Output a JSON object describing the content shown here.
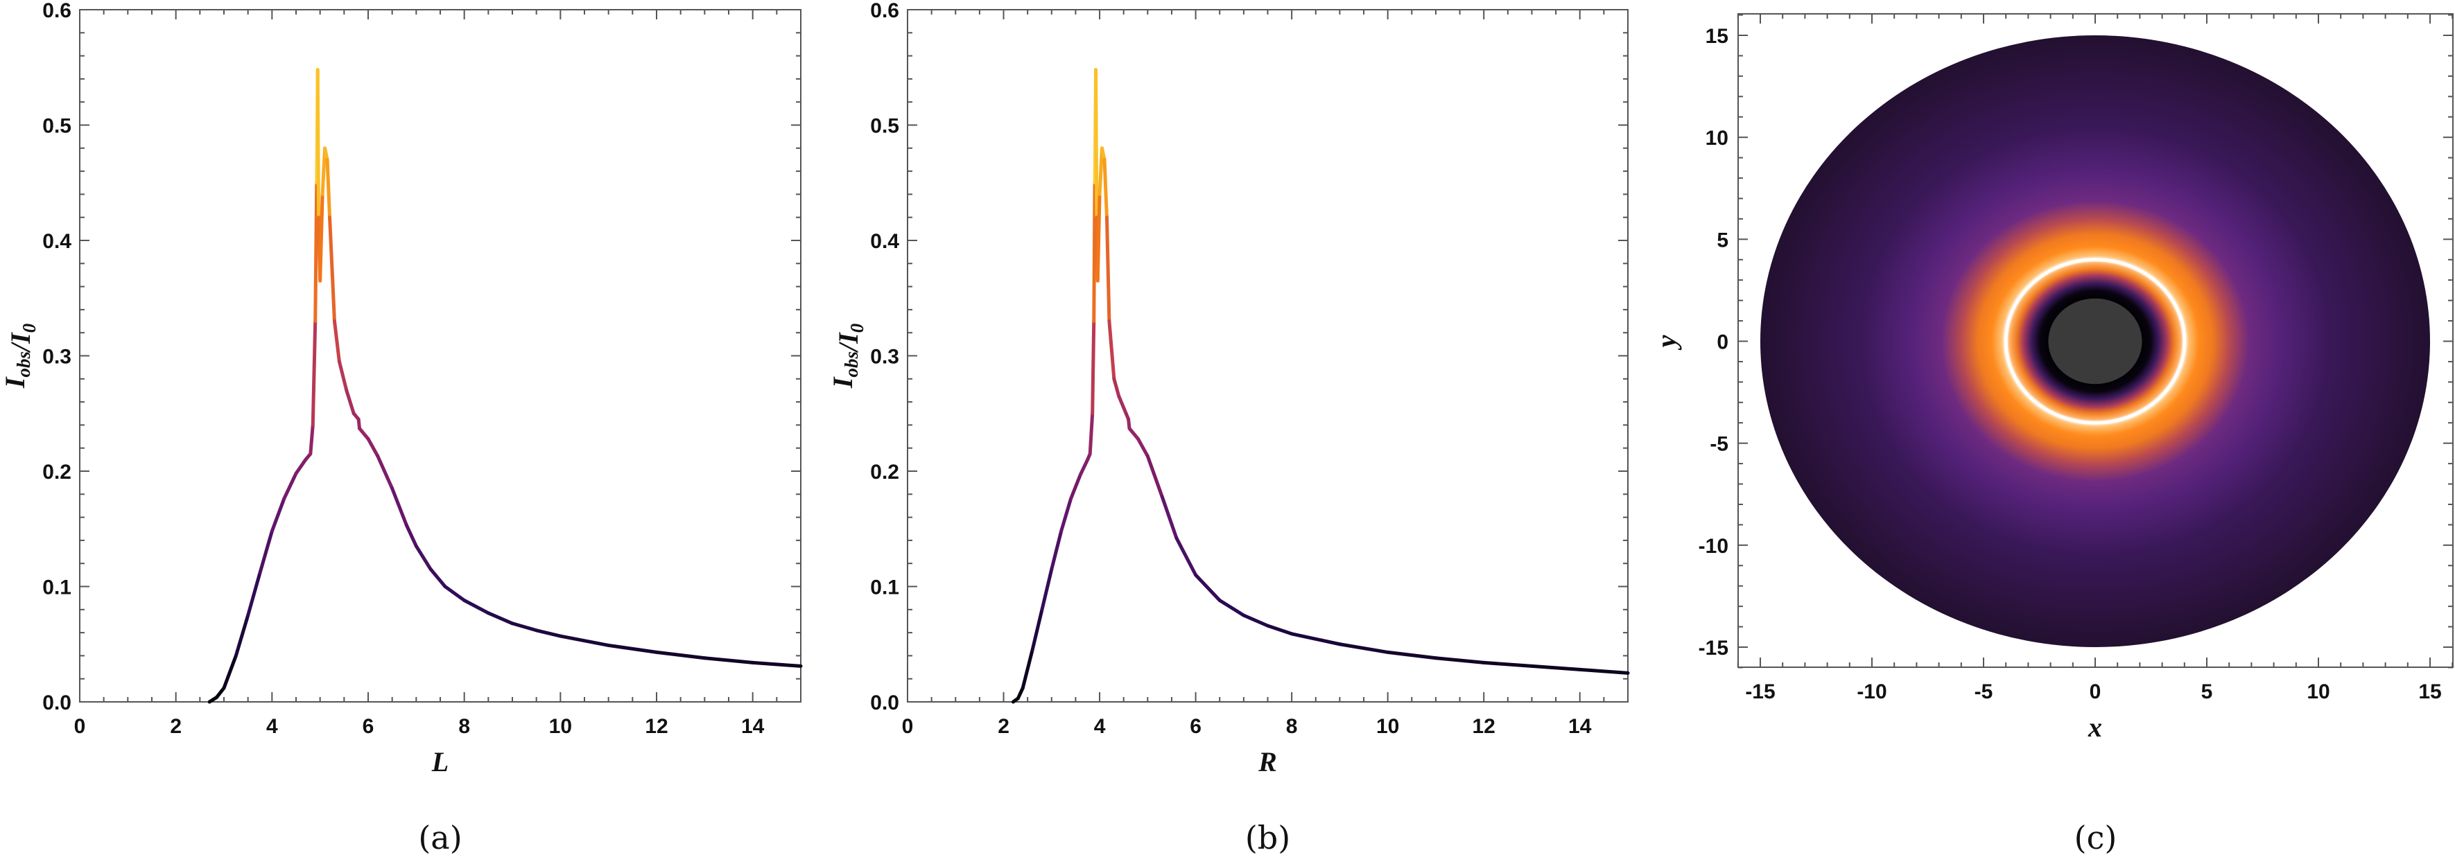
{
  "chart_data": [
    {
      "type": "line",
      "panel_label": "(a)",
      "xlabel": "L",
      "ylabel": {
        "main": "I",
        "sub1": "obs",
        "sep": "/",
        "main2": "I",
        "sub2": "0"
      },
      "xlim": [
        0,
        15
      ],
      "ylim": [
        0,
        0.6
      ],
      "xticks": [
        "0",
        "2",
        "4",
        "6",
        "8",
        "10",
        "12",
        "14"
      ],
      "yticks": [
        "0.0",
        "0.1",
        "0.2",
        "0.3",
        "0.4",
        "0.5",
        "0.6"
      ],
      "grid": false,
      "colormap": "inferno",
      "x": [
        2.7,
        2.85,
        3.0,
        3.25,
        3.5,
        3.75,
        4.0,
        4.25,
        4.5,
        4.7,
        4.8,
        4.85,
        4.9,
        4.93,
        4.95,
        4.97,
        5.0,
        5.05,
        5.1,
        5.15,
        5.2,
        5.3,
        5.4,
        5.55,
        5.7,
        5.8,
        5.82,
        6.0,
        6.2,
        6.5,
        6.8,
        7.0,
        7.3,
        7.6,
        8.0,
        8.5,
        9.0,
        9.5,
        10.0,
        11.0,
        12.0,
        13.0,
        14.0,
        15.0
      ],
      "y": [
        0.0,
        0.004,
        0.012,
        0.04,
        0.075,
        0.112,
        0.148,
        0.176,
        0.198,
        0.21,
        0.215,
        0.24,
        0.33,
        0.45,
        0.548,
        0.42,
        0.365,
        0.44,
        0.48,
        0.47,
        0.42,
        0.33,
        0.295,
        0.27,
        0.25,
        0.245,
        0.237,
        0.228,
        0.213,
        0.185,
        0.153,
        0.135,
        0.115,
        0.1,
        0.088,
        0.077,
        0.068,
        0.062,
        0.057,
        0.049,
        0.043,
        0.038,
        0.034,
        0.031
      ]
    },
    {
      "type": "line",
      "panel_label": "(b)",
      "xlabel": "R",
      "ylabel": {
        "main": "I",
        "sub1": "obs",
        "sep": "/",
        "main2": "I",
        "sub2": "0"
      },
      "xlim": [
        0,
        15
      ],
      "ylim": [
        0,
        0.6
      ],
      "xticks": [
        "0",
        "2",
        "4",
        "6",
        "8",
        "10",
        "12",
        "14"
      ],
      "yticks": [
        "0.0",
        "0.1",
        "0.2",
        "0.3",
        "0.4",
        "0.5",
        "0.6"
      ],
      "grid": false,
      "colormap": "inferno",
      "x": [
        2.2,
        2.3,
        2.4,
        2.6,
        2.8,
        3.0,
        3.2,
        3.4,
        3.6,
        3.75,
        3.8,
        3.85,
        3.88,
        3.9,
        3.92,
        3.94,
        3.96,
        4.0,
        4.05,
        4.1,
        4.15,
        4.2,
        4.3,
        4.4,
        4.55,
        4.6,
        4.62,
        4.8,
        5.0,
        5.3,
        5.6,
        6.0,
        6.5,
        7.0,
        7.5,
        8.0,
        9.0,
        10.0,
        11.0,
        12.0,
        13.0,
        14.0,
        15.0
      ],
      "y": [
        0.0,
        0.003,
        0.012,
        0.045,
        0.08,
        0.115,
        0.148,
        0.176,
        0.197,
        0.21,
        0.215,
        0.25,
        0.33,
        0.45,
        0.548,
        0.42,
        0.365,
        0.44,
        0.48,
        0.47,
        0.42,
        0.33,
        0.28,
        0.265,
        0.25,
        0.245,
        0.237,
        0.228,
        0.213,
        0.178,
        0.142,
        0.11,
        0.088,
        0.075,
        0.066,
        0.059,
        0.05,
        0.043,
        0.038,
        0.034,
        0.031,
        0.028,
        0.025
      ]
    },
    {
      "type": "heatmap",
      "panel_label": "(c)",
      "xlabel": "x",
      "ylabel": "y",
      "xlim": [
        -16,
        16
      ],
      "ylim": [
        -16,
        16
      ],
      "xticks": [
        "-15",
        "-10",
        "-5",
        "0",
        "5",
        "10",
        "15"
      ],
      "yticks": [
        "-15",
        "-10",
        "-5",
        "0",
        "5",
        "10",
        "15"
      ],
      "disk_outer_radius": 15,
      "shadow_radius": 2.1,
      "photon_ring_radius": 4.0,
      "colormap": "inferno",
      "colors": {
        "shadow": "#3b3b3b",
        "ring": "#ffffff",
        "orange": "#ff8a1c",
        "purple": "#5d2484",
        "outer": "#231030"
      }
    }
  ]
}
